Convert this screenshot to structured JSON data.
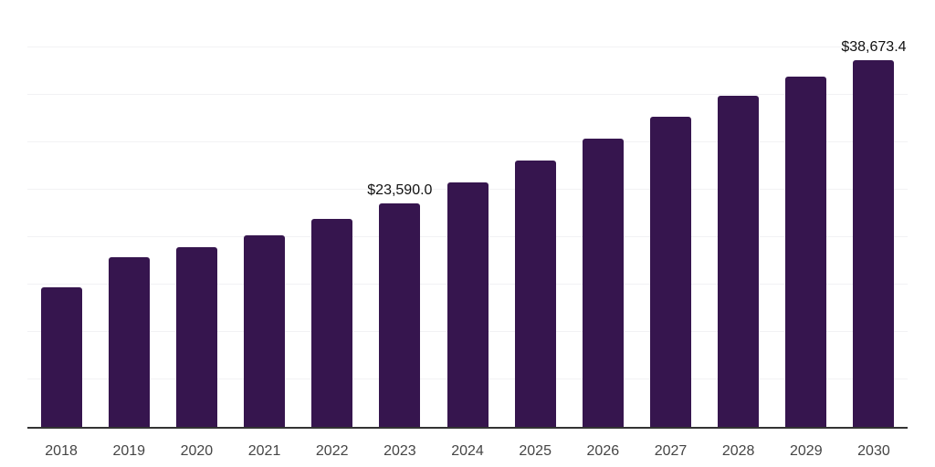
{
  "chart_data": {
    "type": "bar",
    "title": "",
    "xlabel": "",
    "ylabel": "",
    "categories": [
      "2018",
      "2019",
      "2020",
      "2021",
      "2022",
      "2023",
      "2024",
      "2025",
      "2026",
      "2027",
      "2028",
      "2029",
      "2030"
    ],
    "values": [
      14700,
      17900,
      18900,
      20200,
      21900,
      23590.0,
      25800,
      28100,
      30400,
      32700,
      34900,
      36900,
      38673.4
    ],
    "data_labels": [
      null,
      null,
      null,
      null,
      null,
      "$23,590.0",
      null,
      null,
      null,
      null,
      null,
      null,
      "$38,673.4"
    ],
    "ylim": [
      0,
      45000
    ],
    "grid_step": 5000,
    "grid": "horizontal-only",
    "legend": "none",
    "colors": {
      "bar": "#36154e",
      "gridline": "#f2f2f4",
      "axis_line": "#333333",
      "tick_label": "#454545",
      "data_label": "#111111",
      "background": "#ffffff"
    }
  }
}
